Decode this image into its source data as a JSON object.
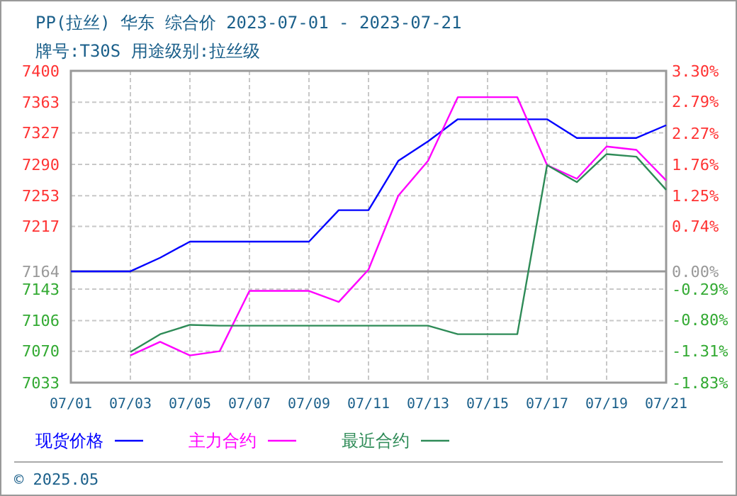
{
  "chart_data": {
    "type": "line",
    "title": "PP(拉丝) 华东 综合价 2023-07-01 - 2023-07-21",
    "subtitle": "牌号:T30S 用途级别:拉丝级",
    "categories": [
      "07/01",
      null,
      "07/03",
      null,
      "07/05",
      null,
      "07/07",
      null,
      "07/09",
      null,
      "07/11",
      null,
      "07/13",
      null,
      "07/15",
      null,
      "07/17",
      null,
      "07/19",
      null,
      "07/21"
    ],
    "series": [
      {
        "name": "现货价格",
        "color": "#0000ff",
        "values": [
          7164,
          7164,
          7164,
          7180,
          7199,
          7199,
          7199,
          7199,
          7199,
          7236,
          7236,
          7294,
          7317,
          7343,
          7343,
          7343,
          7343,
          7321,
          7321,
          7321,
          7336
        ]
      },
      {
        "name": "主力合约",
        "color": "#ff00ff",
        "values": [
          null,
          null,
          7065,
          7081,
          7065,
          7070,
          7141,
          7141,
          7141,
          7128,
          7166,
          7253,
          7294,
          7369,
          7369,
          7369,
          7289,
          7273,
          7311,
          7307,
          7271
        ]
      },
      {
        "name": "最近合约",
        "color": "#2e8b57",
        "values": [
          null,
          null,
          7069,
          7090,
          7101,
          7100,
          7100,
          7100,
          7100,
          7100,
          7100,
          7100,
          7100,
          7090,
          7090,
          7090,
          7289,
          7269,
          7302,
          7299,
          7260
        ]
      }
    ],
    "ylim": [
      7033,
      7400
    ],
    "yticks": [
      7033,
      7070,
      7106,
      7143,
      7164,
      7217,
      7253,
      7290,
      7327,
      7363,
      7400
    ],
    "y2lim": [
      -1.83,
      3.3
    ],
    "y2ticks": [
      {
        "value": -1.83,
        "label": "-1.83%"
      },
      {
        "value": -1.31,
        "label": "-1.31%"
      },
      {
        "value": -0.8,
        "label": "-0.80%"
      },
      {
        "value": -0.29,
        "label": "-0.29%"
      },
      {
        "value": 0,
        "label": "0.00%"
      },
      {
        "value": 0.74,
        "label": "0.74%"
      },
      {
        "value": 1.25,
        "label": "1.25%"
      },
      {
        "value": 1.76,
        "label": "1.76%"
      },
      {
        "value": 2.27,
        "label": "2.27%"
      },
      {
        "value": 2.79,
        "label": "2.79%"
      },
      {
        "value": 3.3,
        "label": "3.30%"
      }
    ],
    "ref_lines": [
      {
        "axis": "y",
        "value": 7164,
        "color": "#999999"
      }
    ],
    "grid": true,
    "legend": "bottom",
    "marker": "none",
    "line_style": "solid",
    "annotations": [
      "© 2025.05"
    ]
  }
}
